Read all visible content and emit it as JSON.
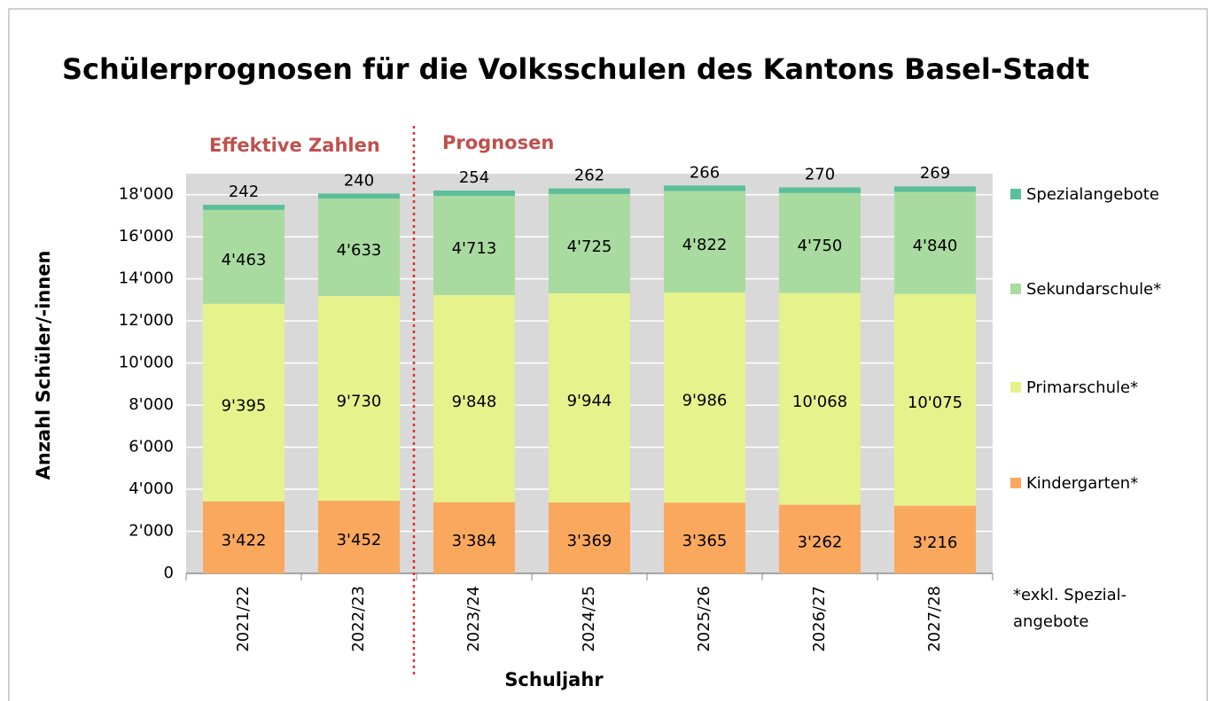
{
  "chart_data": {
    "type": "stacked_bar",
    "title": "Schülerprognosen für die Volksschulen des Kantons Basel-Stadt",
    "y_label": "Anzahl Schüler/-innen",
    "x_label": "Schuljahr",
    "annotations": [
      "Effektive Zahlen",
      "Prognosen"
    ],
    "footnote": [
      "*exkl. Spezial-",
      "angebote"
    ],
    "categories": [
      "2021/22",
      "2022/23",
      "2023/24",
      "2024/25",
      "2025/26",
      "2026/27",
      "2027/28"
    ],
    "series": [
      {
        "name": "Kindergarten*",
        "color": "#f9a85e",
        "values": [
          3422,
          3452,
          3384,
          3369,
          3365,
          3262,
          3216
        ],
        "value_labels": [
          "3'422",
          "3'452",
          "3'384",
          "3'369",
          "3'365",
          "3'262",
          "3'216"
        ]
      },
      {
        "name": "Primarschule*",
        "color": "#e6f28c",
        "values": [
          9395,
          9730,
          9848,
          9944,
          9986,
          10068,
          10075
        ],
        "value_labels": [
          "9'395",
          "9'730",
          "9'848",
          "9'944",
          "9'986",
          "10'068",
          "10'075"
        ]
      },
      {
        "name": "Sekundarschule*",
        "color": "#a9dba0",
        "values": [
          4463,
          4633,
          4713,
          4725,
          4822,
          4750,
          4840
        ],
        "value_labels": [
          "4'463",
          "4'633",
          "4'713",
          "4'725",
          "4'822",
          "4'750",
          "4'840"
        ]
      },
      {
        "name": "Spezialangebote",
        "color": "#5cbf9a",
        "values": [
          242,
          240,
          254,
          262,
          266,
          270,
          269
        ]
      }
    ],
    "ylim": [
      0,
      19000
    ],
    "yticks": [
      0,
      {
        "value": 2000,
        "label": "2'000"
      },
      {
        "value": 4000,
        "label": "4'000"
      },
      {
        "value": 6000,
        "label": "6'000"
      },
      {
        "value": 8000,
        "label": "8'000"
      },
      {
        "value": 10000,
        "label": "10'000"
      },
      {
        "value": 12000,
        "label": "12'000"
      },
      {
        "value": 14000,
        "label": "14'000"
      },
      {
        "value": 16000,
        "label": "16'000"
      },
      {
        "value": 18000,
        "label": "18'000"
      }
    ],
    "grid": true
  }
}
